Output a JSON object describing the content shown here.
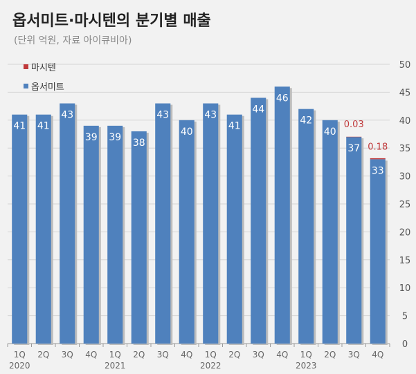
{
  "title": "옵서미트·마시텐의 분기별 매출",
  "subtitle": "(단위 억원, 자료 아이큐비아)",
  "legend": [
    {
      "label": "마시텐",
      "color": "#c0393b"
    },
    {
      "label": "옵서미트",
      "color": "#4f81bd"
    }
  ],
  "chart_data": {
    "type": "bar",
    "stacked": true,
    "categories": [
      "1Q 2020",
      "2Q 2020",
      "3Q 2020",
      "4Q 2020",
      "1Q 2021",
      "2Q 2021",
      "3Q 2021",
      "4Q 2021",
      "1Q 2022",
      "2Q 2022",
      "3Q 2022",
      "4Q 2022",
      "1Q 2023",
      "2Q 2023",
      "3Q 2023",
      "4Q 2023"
    ],
    "quarter_labels": [
      "1Q",
      "2Q",
      "3Q",
      "4Q",
      "1Q",
      "2Q",
      "3Q",
      "4Q",
      "1Q",
      "2Q",
      "3Q",
      "4Q",
      "1Q",
      "2Q",
      "3Q",
      "4Q"
    ],
    "year_labels": [
      {
        "index": 0,
        "label": "2020"
      },
      {
        "index": 4,
        "label": "2021"
      },
      {
        "index": 8,
        "label": "2022"
      },
      {
        "index": 12,
        "label": "2023"
      }
    ],
    "series": [
      {
        "name": "옵서미트",
        "color": "#4f81bd",
        "values": [
          41,
          41,
          43,
          39,
          39,
          38,
          43,
          40,
          43,
          41,
          44,
          46,
          42,
          40,
          37,
          33
        ],
        "labels": [
          "41",
          "41",
          "43",
          "39",
          "39",
          "38",
          "43",
          "40",
          "43",
          "41",
          "44",
          "46",
          "42",
          "40",
          "37",
          "33"
        ]
      },
      {
        "name": "마시텐",
        "color": "#c0393b",
        "values": [
          null,
          null,
          null,
          null,
          null,
          null,
          null,
          null,
          null,
          null,
          null,
          null,
          null,
          null,
          0.03,
          0.18
        ],
        "labels": [
          "",
          "",
          "",
          "",
          "",
          "",
          "",
          "",
          "",
          "",
          "",
          "",
          "",
          "",
          "0.03",
          "0.18"
        ]
      }
    ],
    "y_axis": {
      "position": "right",
      "min": 0,
      "max": 50,
      "ticks": [
        0,
        5,
        10,
        15,
        20,
        25,
        30,
        35,
        40,
        45,
        50
      ]
    },
    "grid": true,
    "legend_position": "top-left"
  }
}
